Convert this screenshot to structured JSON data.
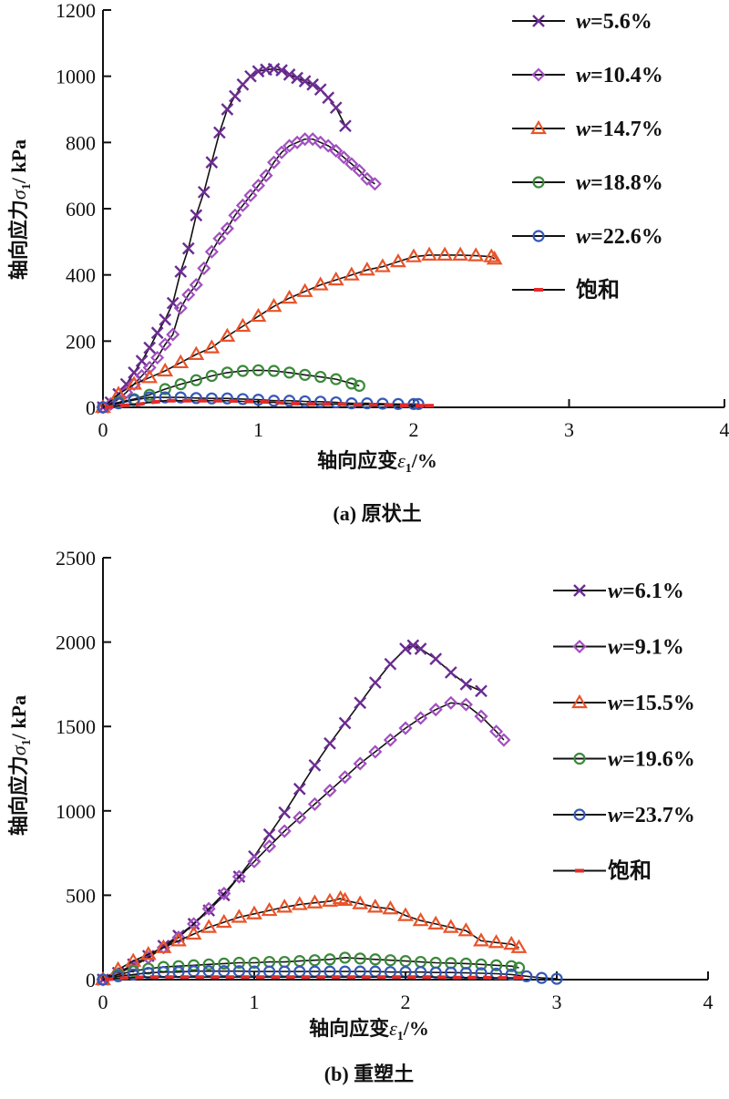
{
  "chart_data": [
    {
      "type": "line",
      "panel_id": "a",
      "caption": "(a) 原状土",
      "xlabel": "轴向应变ε1/%",
      "xlabel_parts": {
        "main": "轴向应变",
        "symbol": "ε",
        "sub": "1",
        "unit": "/%"
      },
      "ylabel": "轴向应力σ1/ kPa",
      "ylabel_parts": {
        "main": "轴向应力",
        "symbol": "σ",
        "sub": "1",
        "unit": "/ kPa"
      },
      "xlim": [
        0,
        4
      ],
      "ylim": [
        0,
        1200
      ],
      "xticks": [
        0,
        1,
        2,
        3,
        4
      ],
      "yticks": [
        0,
        200,
        400,
        600,
        800,
        1000,
        1200
      ],
      "grid": false,
      "legend_position": "right",
      "series": [
        {
          "name": "w=5.6%",
          "w_label": "w",
          "value_label": "=5.6%",
          "marker": "x",
          "color": "#6a2c91",
          "x": [
            0,
            0.05,
            0.1,
            0.15,
            0.2,
            0.25,
            0.3,
            0.35,
            0.4,
            0.45,
            0.5,
            0.55,
            0.6,
            0.65,
            0.7,
            0.75,
            0.8,
            0.85,
            0.9,
            0.95,
            1.0,
            1.05,
            1.1,
            1.15,
            1.2,
            1.25,
            1.3,
            1.35,
            1.4,
            1.45,
            1.5,
            1.56
          ],
          "y": [
            0,
            15,
            40,
            70,
            105,
            140,
            180,
            225,
            265,
            315,
            410,
            480,
            580,
            650,
            740,
            830,
            900,
            940,
            975,
            1000,
            1015,
            1020,
            1022,
            1018,
            1005,
            995,
            985,
            975,
            960,
            935,
            905,
            850
          ]
        },
        {
          "name": "w=10.4%",
          "w_label": "w",
          "value_label": "=10.4%",
          "marker": "diamond",
          "color": "#a24fc0",
          "x": [
            0,
            0.05,
            0.1,
            0.15,
            0.2,
            0.25,
            0.3,
            0.35,
            0.4,
            0.45,
            0.5,
            0.55,
            0.6,
            0.65,
            0.7,
            0.75,
            0.8,
            0.85,
            0.9,
            0.95,
            1.0,
            1.05,
            1.1,
            1.15,
            1.2,
            1.25,
            1.3,
            1.35,
            1.4,
            1.45,
            1.5,
            1.55,
            1.6,
            1.65,
            1.7,
            1.75
          ],
          "y": [
            0,
            10,
            25,
            45,
            70,
            95,
            120,
            150,
            190,
            220,
            300,
            340,
            370,
            420,
            470,
            510,
            540,
            580,
            610,
            640,
            670,
            700,
            740,
            770,
            790,
            800,
            810,
            810,
            800,
            790,
            775,
            755,
            735,
            715,
            690,
            675
          ]
        },
        {
          "name": "w=14.7%",
          "w_label": "w",
          "value_label": "=14.7%",
          "marker": "triangle",
          "color": "#e8542a",
          "x": [
            0,
            0.1,
            0.2,
            0.3,
            0.4,
            0.5,
            0.6,
            0.7,
            0.8,
            0.9,
            1.0,
            1.1,
            1.2,
            1.3,
            1.4,
            1.5,
            1.6,
            1.7,
            1.8,
            1.9,
            2.0,
            2.1,
            2.2,
            2.3,
            2.4,
            2.5,
            2.52
          ],
          "y": [
            0,
            40,
            70,
            90,
            110,
            135,
            160,
            180,
            215,
            245,
            275,
            305,
            330,
            350,
            370,
            385,
            400,
            415,
            425,
            440,
            455,
            460,
            460,
            460,
            458,
            455,
            448
          ]
        },
        {
          "name": "w=18.8%",
          "w_label": "w",
          "value_label": "=18.8%",
          "marker": "circle",
          "color": "#3b8a3b",
          "x": [
            0,
            0.1,
            0.2,
            0.3,
            0.4,
            0.5,
            0.6,
            0.7,
            0.8,
            0.9,
            1.0,
            1.1,
            1.2,
            1.3,
            1.4,
            1.5,
            1.6,
            1.65
          ],
          "y": [
            0,
            15,
            25,
            38,
            55,
            70,
            82,
            95,
            105,
            110,
            112,
            110,
            105,
            98,
            92,
            85,
            72,
            65
          ]
        },
        {
          "name": "w=22.6%",
          "w_label": "w",
          "value_label": "=22.6%",
          "marker": "circle",
          "color": "#3558b8",
          "x": [
            0,
            0.1,
            0.2,
            0.3,
            0.4,
            0.5,
            0.6,
            0.7,
            0.8,
            0.9,
            1.0,
            1.1,
            1.2,
            1.3,
            1.4,
            1.5,
            1.6,
            1.7,
            1.8,
            1.9,
            2.0,
            2.03
          ],
          "y": [
            0,
            12,
            22,
            30,
            30,
            30,
            28,
            27,
            27,
            25,
            23,
            20,
            20,
            18,
            17,
            15,
            12,
            12,
            11,
            10,
            10,
            10
          ]
        },
        {
          "name": "饱和",
          "w_label": "",
          "value_label": "饱和",
          "marker": "dash",
          "color": "#e32b2b",
          "x": [
            0,
            0.1,
            0.2,
            0.3,
            0.4,
            0.5,
            0.6,
            0.7,
            0.8,
            0.9,
            1.0,
            1.1,
            1.2,
            1.3,
            1.4,
            1.5,
            1.6,
            1.7,
            1.8,
            1.9,
            2.0,
            2.1
          ],
          "y": [
            0,
            5,
            8,
            15,
            20,
            20,
            20,
            20,
            20,
            18,
            17,
            15,
            12,
            10,
            10,
            10,
            8,
            8,
            8,
            6,
            5,
            5
          ]
        }
      ]
    },
    {
      "type": "line",
      "panel_id": "b",
      "caption": "(b) 重塑土",
      "xlabel": "轴向应变ε1/%",
      "xlabel_parts": {
        "main": "轴向应变",
        "symbol": "ε",
        "sub": "1",
        "unit": "/%"
      },
      "ylabel": "轴向应力σ1/ kPa",
      "ylabel_parts": {
        "main": "轴向应力",
        "symbol": "σ",
        "sub": "1",
        "unit": "/ kPa"
      },
      "xlim": [
        0,
        4
      ],
      "ylim": [
        0,
        2500
      ],
      "xticks": [
        0,
        1,
        2,
        3,
        4
      ],
      "yticks": [
        0,
        500,
        1000,
        1500,
        2000,
        2500
      ],
      "grid": false,
      "legend_position": "right",
      "series": [
        {
          "name": "w=6.1%",
          "w_label": "w",
          "value_label": "=6.1%",
          "marker": "x",
          "color": "#6a2c91",
          "x": [
            0,
            0.1,
            0.2,
            0.3,
            0.4,
            0.5,
            0.6,
            0.7,
            0.8,
            0.9,
            1.0,
            1.1,
            1.2,
            1.3,
            1.4,
            1.5,
            1.6,
            1.7,
            1.8,
            1.9,
            2.0,
            2.05,
            2.1,
            2.2,
            2.3,
            2.4,
            2.5
          ],
          "y": [
            0,
            40,
            90,
            140,
            200,
            260,
            330,
            410,
            500,
            610,
            730,
            860,
            990,
            1130,
            1270,
            1400,
            1520,
            1640,
            1760,
            1870,
            1960,
            1980,
            1960,
            1900,
            1820,
            1750,
            1710
          ]
        },
        {
          "name": "w=9.1%",
          "w_label": "w",
          "value_label": "=9.1%",
          "marker": "diamond",
          "color": "#a24fc0",
          "x": [
            0,
            0.1,
            0.2,
            0.3,
            0.4,
            0.5,
            0.6,
            0.7,
            0.8,
            0.9,
            1.0,
            1.1,
            1.2,
            1.3,
            1.4,
            1.5,
            1.6,
            1.7,
            1.8,
            1.9,
            2.0,
            2.1,
            2.2,
            2.3,
            2.4,
            2.5,
            2.6,
            2.65
          ],
          "y": [
            0,
            35,
            80,
            130,
            190,
            250,
            330,
            420,
            510,
            610,
            700,
            790,
            880,
            960,
            1040,
            1120,
            1200,
            1280,
            1350,
            1420,
            1490,
            1550,
            1600,
            1640,
            1630,
            1560,
            1470,
            1420
          ]
        },
        {
          "name": "w=15.5%",
          "w_label": "w",
          "value_label": "=15.5%",
          "marker": "triangle",
          "color": "#e8542a",
          "x": [
            0,
            0.1,
            0.2,
            0.3,
            0.4,
            0.5,
            0.6,
            0.7,
            0.8,
            0.9,
            1.0,
            1.1,
            1.2,
            1.3,
            1.4,
            1.5,
            1.57,
            1.6,
            1.7,
            1.8,
            1.9,
            2.0,
            2.1,
            2.2,
            2.3,
            2.4,
            2.5,
            2.6,
            2.7,
            2.75
          ],
          "y": [
            0,
            60,
            110,
            150,
            190,
            230,
            270,
            310,
            340,
            370,
            390,
            410,
            430,
            445,
            455,
            465,
            480,
            470,
            450,
            430,
            420,
            380,
            350,
            330,
            310,
            290,
            230,
            220,
            210,
            190
          ]
        },
        {
          "name": "w=19.6%",
          "w_label": "w",
          "value_label": "=19.6%",
          "marker": "circle",
          "color": "#3b8a3b",
          "x": [
            0,
            0.1,
            0.2,
            0.3,
            0.4,
            0.5,
            0.6,
            0.7,
            0.8,
            0.9,
            1.0,
            1.1,
            1.2,
            1.3,
            1.4,
            1.5,
            1.6,
            1.7,
            1.8,
            1.9,
            2.0,
            2.1,
            2.2,
            2.3,
            2.4,
            2.5,
            2.6,
            2.7,
            2.75
          ],
          "y": [
            0,
            30,
            50,
            65,
            75,
            80,
            85,
            90,
            95,
            100,
            100,
            105,
            105,
            110,
            115,
            120,
            130,
            125,
            120,
            115,
            110,
            105,
            100,
            98,
            95,
            90,
            85,
            80,
            70
          ]
        },
        {
          "name": "w=23.7%",
          "w_label": "w",
          "value_label": "=23.7%",
          "marker": "circle",
          "color": "#3558b8",
          "x": [
            0,
            0.1,
            0.2,
            0.3,
            0.4,
            0.5,
            0.6,
            0.7,
            0.8,
            0.9,
            1.0,
            1.1,
            1.2,
            1.3,
            1.4,
            1.5,
            1.6,
            1.7,
            1.8,
            1.9,
            2.0,
            2.1,
            2.2,
            2.3,
            2.4,
            2.5,
            2.6,
            2.7,
            2.8,
            2.9,
            3.0
          ],
          "y": [
            0,
            20,
            30,
            40,
            45,
            45,
            50,
            50,
            50,
            50,
            48,
            48,
            48,
            48,
            48,
            48,
            48,
            48,
            48,
            45,
            45,
            45,
            42,
            42,
            40,
            38,
            35,
            30,
            20,
            10,
            5
          ]
        },
        {
          "name": "饱和",
          "w_label": "",
          "value_label": "饱和",
          "marker": "dash",
          "color": "#e32b2b",
          "x": [
            0,
            0.1,
            0.2,
            0.3,
            0.4,
            0.5,
            0.6,
            0.7,
            0.8,
            0.9,
            1.0,
            1.1,
            1.2,
            1.3,
            1.4,
            1.5,
            1.6,
            1.7,
            1.8,
            1.9,
            2.0,
            2.1,
            2.2,
            2.3,
            2.4,
            2.5,
            2.6,
            2.7,
            2.75
          ],
          "y": [
            0,
            8,
            12,
            15,
            15,
            15,
            15,
            15,
            15,
            15,
            15,
            15,
            15,
            15,
            15,
            15,
            15,
            15,
            15,
            15,
            15,
            15,
            15,
            12,
            12,
            12,
            10,
            10,
            10
          ]
        }
      ]
    }
  ]
}
